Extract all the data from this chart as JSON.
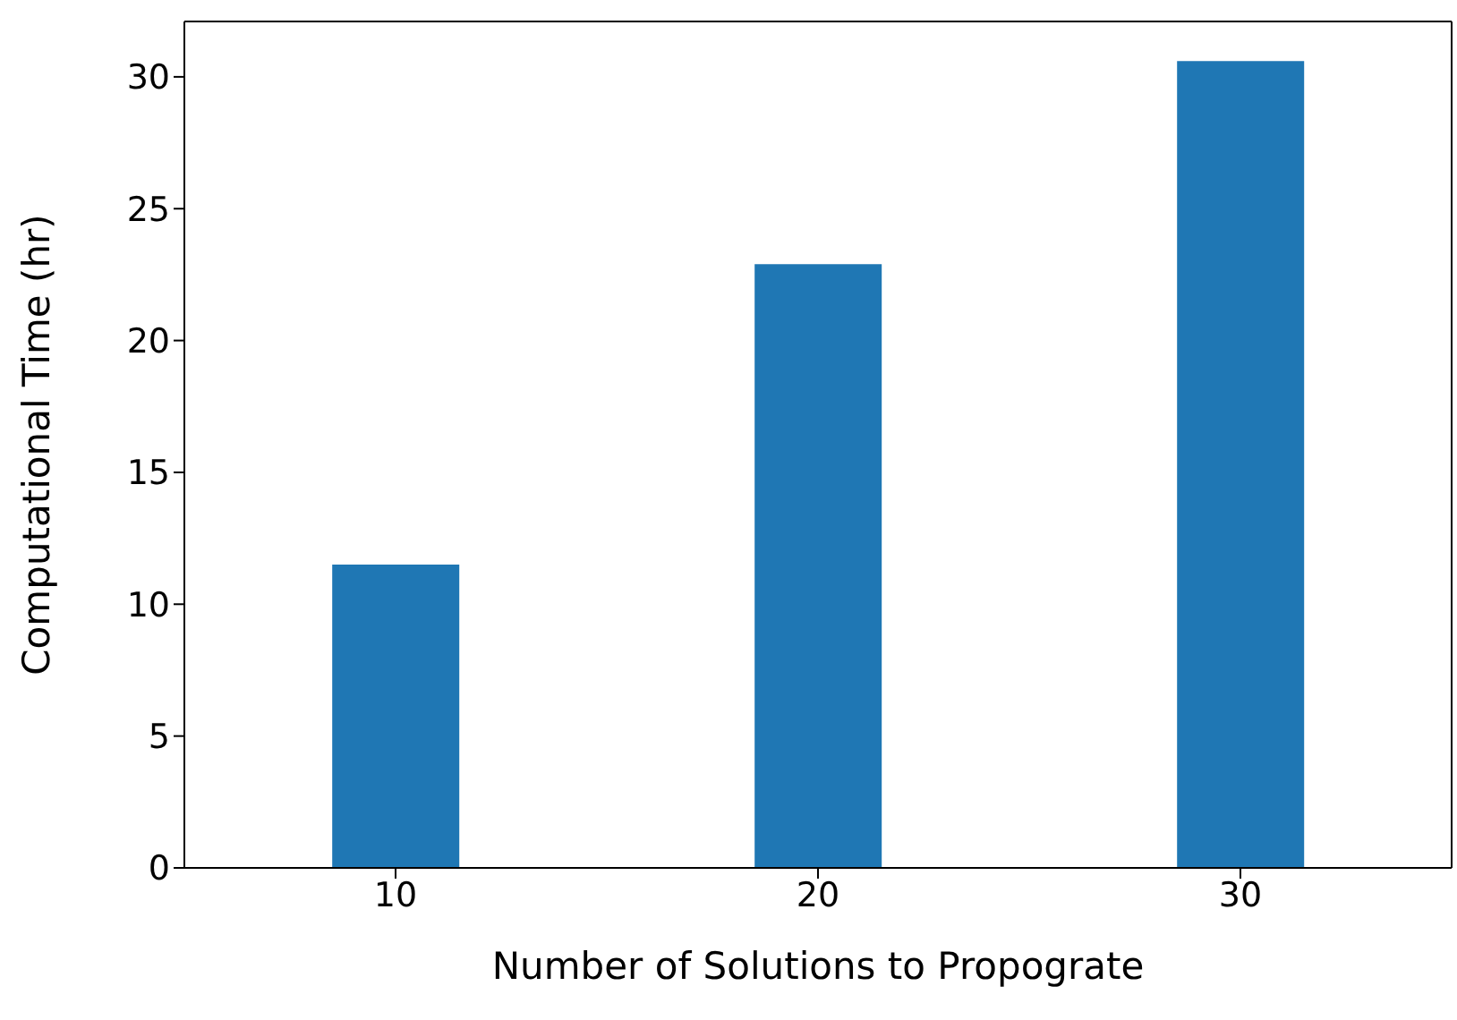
{
  "chart_data": {
    "type": "bar",
    "xlabel": "Number of Solutions to Propograte",
    "ylabel": "Computational Time (hr)",
    "categories": [
      "10",
      "20",
      "30"
    ],
    "values": [
      11.5,
      22.9,
      30.6
    ],
    "color": "#1f77b4",
    "ylim": [
      0,
      32.1
    ],
    "yticks": [
      0,
      5,
      10,
      15,
      20,
      25,
      30
    ],
    "grid": false
  }
}
